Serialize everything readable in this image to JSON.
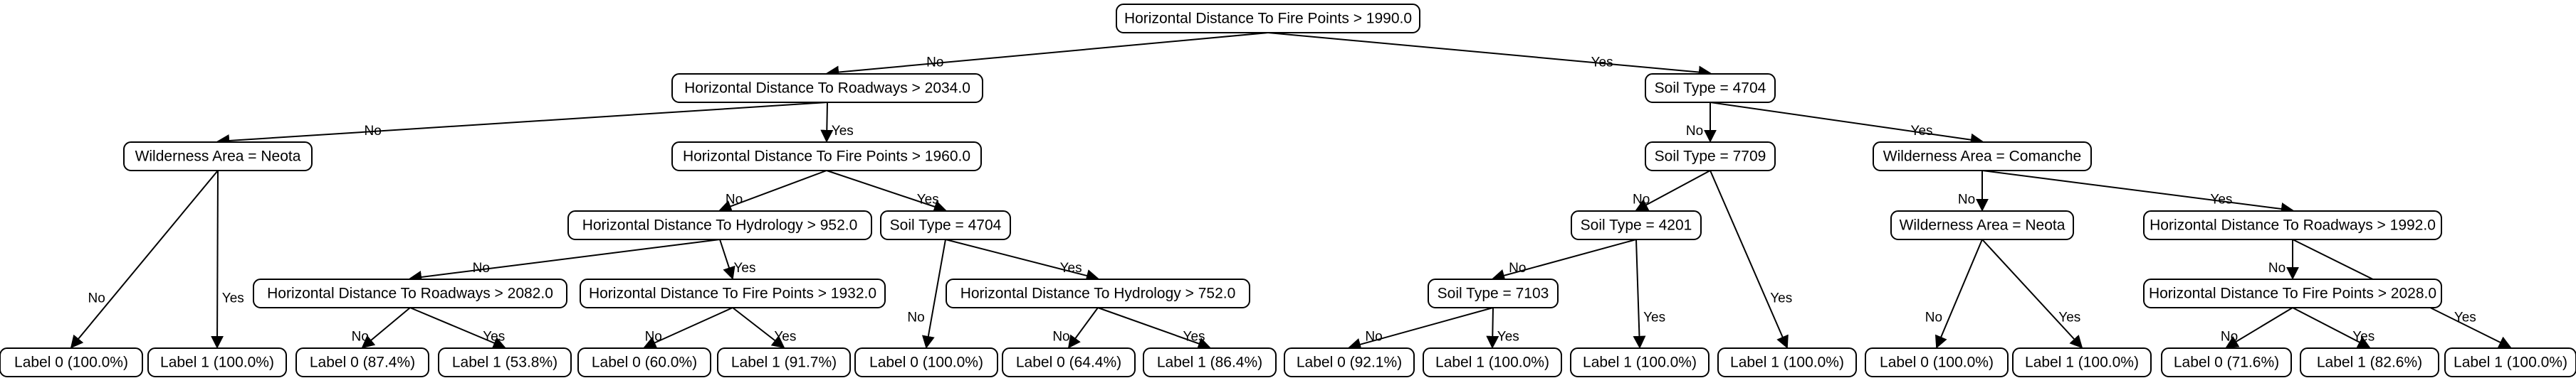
{
  "tree": {
    "branch_yes": "Yes",
    "branch_no": "No",
    "nodes": [
      {
        "id": "n0",
        "label": "Horizontal Distance To Fire Points > 1990.0"
      },
      {
        "id": "n1",
        "label": "Horizontal Distance To Roadways > 2034.0"
      },
      {
        "id": "n2",
        "label": "Soil Type = 4704"
      },
      {
        "id": "n3",
        "label": "Wilderness Area = Neota"
      },
      {
        "id": "n4",
        "label": "Horizontal Distance To Fire Points > 1960.0"
      },
      {
        "id": "n5",
        "label": "Soil Type = 7709"
      },
      {
        "id": "n6",
        "label": "Wilderness Area = Comanche"
      },
      {
        "id": "n7",
        "label": "Horizontal Distance To Hydrology > 952.0"
      },
      {
        "id": "n8",
        "label": "Soil Type = 4704"
      },
      {
        "id": "n9",
        "label": "Soil Type = 4201"
      },
      {
        "id": "n10",
        "label": "Wilderness Area = Neota"
      },
      {
        "id": "n11",
        "label": "Horizontal Distance To Roadways > 1992.0"
      },
      {
        "id": "n12",
        "label": "Horizontal Distance To Roadways > 2082.0"
      },
      {
        "id": "n13",
        "label": "Horizontal Distance To Fire Points > 1932.0"
      },
      {
        "id": "n14",
        "label": "Horizontal Distance To Hydrology > 752.0"
      },
      {
        "id": "n15",
        "label": "Soil Type = 7103"
      },
      {
        "id": "n16",
        "label": "Horizontal Distance To Fire Points > 2028.0"
      },
      {
        "id": "l0",
        "label": "Label 0 (100.0%)"
      },
      {
        "id": "l1",
        "label": "Label 1 (100.0%)"
      },
      {
        "id": "l2",
        "label": "Label 0 (87.4%)"
      },
      {
        "id": "l3",
        "label": "Label 1 (53.8%)"
      },
      {
        "id": "l4",
        "label": "Label 0 (60.0%)"
      },
      {
        "id": "l5",
        "label": "Label 1 (91.7%)"
      },
      {
        "id": "l6",
        "label": "Label 0 (100.0%)"
      },
      {
        "id": "l7",
        "label": "Label 0 (64.4%)"
      },
      {
        "id": "l8",
        "label": "Label 1 (86.4%)"
      },
      {
        "id": "l9",
        "label": "Label 0 (92.1%)"
      },
      {
        "id": "l10",
        "label": "Label 1 (100.0%)"
      },
      {
        "id": "l11",
        "label": "Label 1 (100.0%)"
      },
      {
        "id": "l12",
        "label": "Label 1 (100.0%)"
      },
      {
        "id": "l13",
        "label": "Label 0 (100.0%)"
      },
      {
        "id": "l14",
        "label": "Label 1 (100.0%)"
      },
      {
        "id": "l15",
        "label": "Label 0 (71.6%)"
      },
      {
        "id": "l16",
        "label": "Label 1 (82.6%)"
      },
      {
        "id": "l17",
        "label": "Label 1 (100.0%)"
      }
    ],
    "edges": [
      {
        "from": "n0",
        "to": "n1",
        "branch": "no"
      },
      {
        "from": "n0",
        "to": "n2",
        "branch": "yes"
      },
      {
        "from": "n1",
        "to": "n3",
        "branch": "no"
      },
      {
        "from": "n1",
        "to": "n4",
        "branch": "yes"
      },
      {
        "from": "n2",
        "to": "n5",
        "branch": "no"
      },
      {
        "from": "n2",
        "to": "n6",
        "branch": "yes"
      },
      {
        "from": "n3",
        "to": "l0",
        "branch": "no"
      },
      {
        "from": "n3",
        "to": "l1",
        "branch": "yes"
      },
      {
        "from": "n4",
        "to": "n7",
        "branch": "no"
      },
      {
        "from": "n4",
        "to": "n8",
        "branch": "yes"
      },
      {
        "from": "n5",
        "to": "n9",
        "branch": "no"
      },
      {
        "from": "n5",
        "to": "l12",
        "branch": "yes"
      },
      {
        "from": "n6",
        "to": "n10",
        "branch": "no"
      },
      {
        "from": "n6",
        "to": "n11",
        "branch": "yes"
      },
      {
        "from": "n7",
        "to": "n12",
        "branch": "no"
      },
      {
        "from": "n7",
        "to": "n13",
        "branch": "yes"
      },
      {
        "from": "n8",
        "to": "l6",
        "branch": "no"
      },
      {
        "from": "n8",
        "to": "n14",
        "branch": "yes"
      },
      {
        "from": "n9",
        "to": "n15",
        "branch": "no"
      },
      {
        "from": "n9",
        "to": "l11",
        "branch": "yes"
      },
      {
        "from": "n10",
        "to": "l13",
        "branch": "no"
      },
      {
        "from": "n10",
        "to": "l14",
        "branch": "yes"
      },
      {
        "from": "n11",
        "to": "n16",
        "branch": "no"
      },
      {
        "from": "n11",
        "to": "l17",
        "branch": "yes"
      },
      {
        "from": "n12",
        "to": "l2",
        "branch": "no"
      },
      {
        "from": "n12",
        "to": "l3",
        "branch": "yes"
      },
      {
        "from": "n13",
        "to": "l4",
        "branch": "no"
      },
      {
        "from": "n13",
        "to": "l5",
        "branch": "yes"
      },
      {
        "from": "n14",
        "to": "l7",
        "branch": "no"
      },
      {
        "from": "n14",
        "to": "l8",
        "branch": "yes"
      },
      {
        "from": "n15",
        "to": "l9",
        "branch": "no"
      },
      {
        "from": "n15",
        "to": "l10",
        "branch": "yes"
      },
      {
        "from": "n16",
        "to": "l15",
        "branch": "no"
      },
      {
        "from": "n16",
        "to": "l16",
        "branch": "yes"
      }
    ]
  }
}
